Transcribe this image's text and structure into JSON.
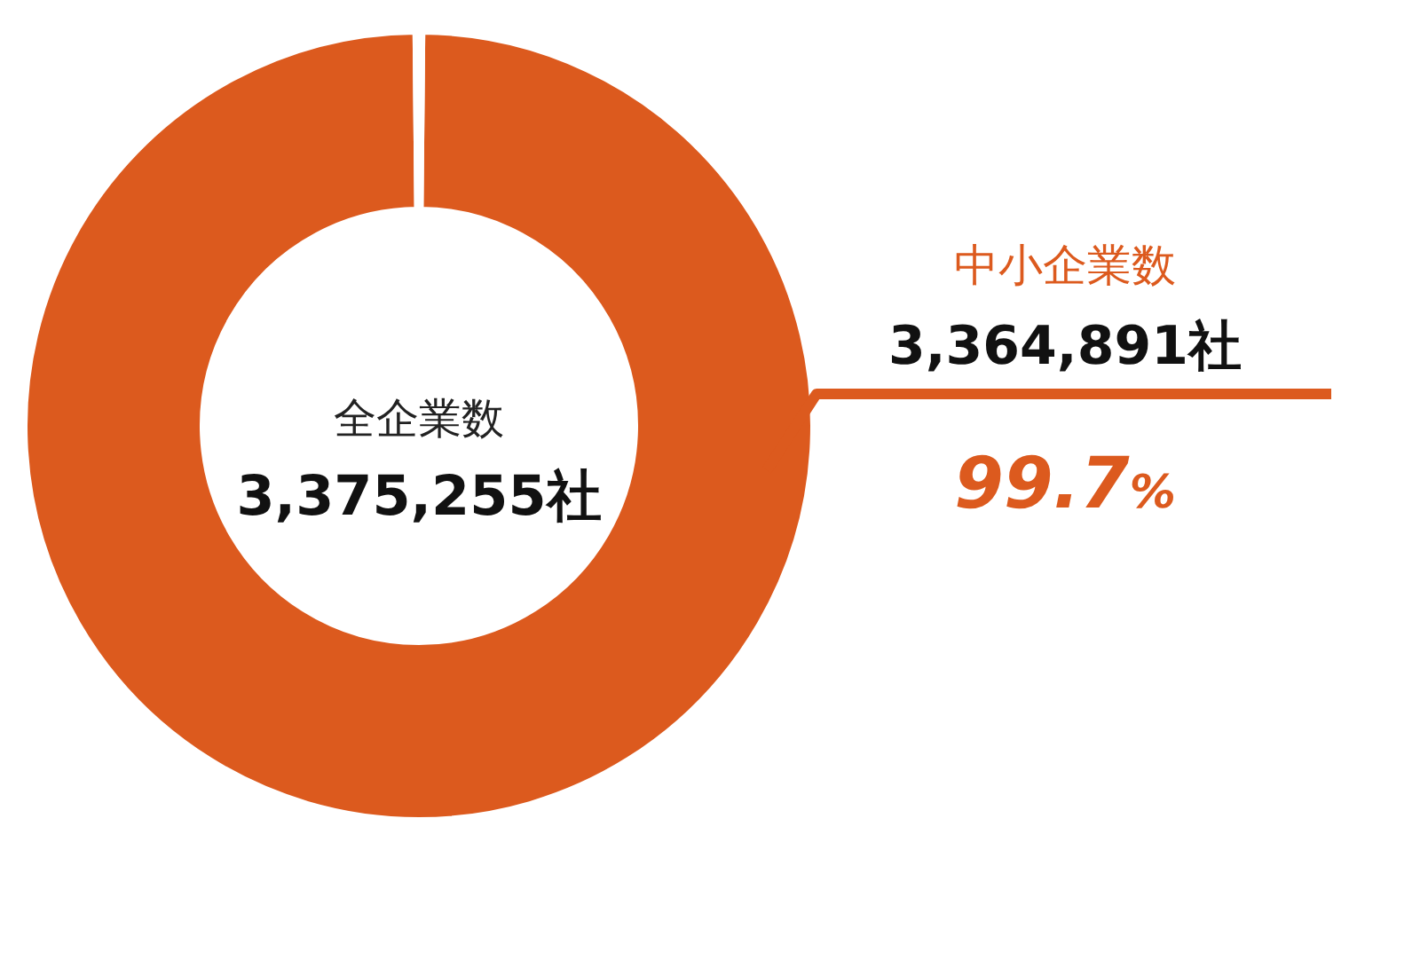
{
  "chart_data": {
    "type": "donut",
    "categories": [
      "中小企業数",
      null
    ],
    "values": [
      99.7,
      0.3
    ],
    "colors": [
      "#dc5a1e",
      "#ffffff"
    ],
    "value_labels": [
      "99.7%",
      null
    ],
    "annotations": [
      "全企業数",
      "3,375,255社",
      "3,364,891社"
    ]
  }
}
